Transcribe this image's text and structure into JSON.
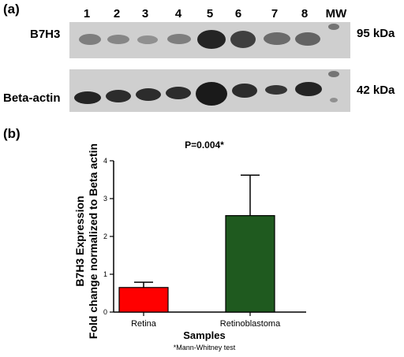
{
  "panel_a": {
    "label": "(a)",
    "lanes": [
      "1",
      "2",
      "3",
      "4",
      "5",
      "6",
      "7",
      "8",
      "MW"
    ],
    "row1": {
      "protein": "B7H3",
      "size": "95 kDa"
    },
    "row2": {
      "protein": "Beta-actin",
      "size": "42 kDa"
    }
  },
  "panel_b": {
    "label": "(b)",
    "pvalue": "P=0.004*",
    "footnote": "*Mann-Whitney test"
  },
  "colors": {
    "retina_bar": "#ff0000",
    "retinoblastoma_bar": "#1f5a1f",
    "blot_background": "#cfcfcf",
    "band": "#1a1a1a"
  },
  "chart_data": {
    "type": "bar",
    "categories": [
      "Retina",
      "Retinoblastoma"
    ],
    "values": [
      0.65,
      2.55
    ],
    "error_upper": [
      0.79,
      3.62
    ],
    "ylim": [
      0,
      4
    ],
    "yticks": [
      "0",
      "1",
      "2",
      "3",
      "4"
    ],
    "xlabel": "Samples",
    "ylabel_line1": "B7H3 Expression",
    "ylabel_line2": "Fold change normalized to Beta actin",
    "grid": false
  }
}
